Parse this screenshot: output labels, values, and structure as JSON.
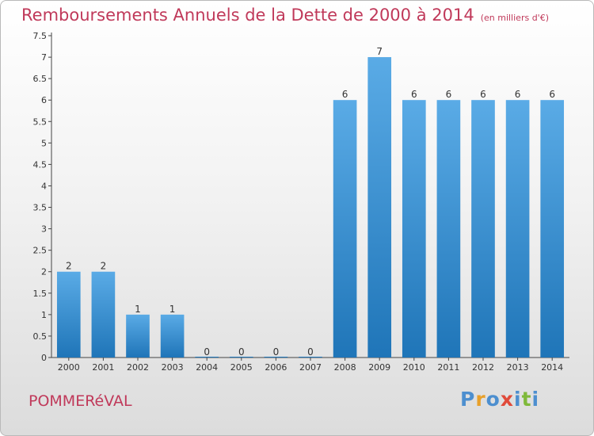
{
  "title": "Remboursements Annuels de la Dette de 2000 à 2014",
  "title_unit": "(en milliers d'€)",
  "footer": {
    "place": "POMMERéVAL",
    "brand": "Proxiti"
  },
  "colors": {
    "title": "#c0395a",
    "bar_top": "#5aabe6",
    "bar_bottom": "#1f75b8",
    "brand": [
      "#4d8fcf",
      "#e8a02a",
      "#4d8fcf",
      "#e04a3a",
      "#4d8fcf",
      "#7fb93a",
      "#4d8fcf"
    ]
  },
  "chart_data": {
    "type": "bar",
    "title": "Remboursements Annuels de la Dette de 2000 à 2014",
    "xlabel": "",
    "ylabel": "",
    "categories": [
      "2000",
      "2001",
      "2002",
      "2003",
      "2004",
      "2005",
      "2006",
      "2007",
      "2008",
      "2009",
      "2010",
      "2011",
      "2012",
      "2013",
      "2014"
    ],
    "values": [
      2,
      2,
      1,
      1,
      0,
      0,
      0,
      0,
      6,
      7,
      6,
      6,
      6,
      6,
      6
    ],
    "ylim": [
      0,
      7.5
    ],
    "yticks": [
      "0",
      "0.5",
      "1",
      "1.5",
      "2",
      "2.5",
      "3",
      "3.5",
      "4",
      "4.5",
      "5",
      "5.5",
      "6",
      "6.5",
      "7",
      "7.5"
    ],
    "grid": false,
    "legend": "none"
  }
}
